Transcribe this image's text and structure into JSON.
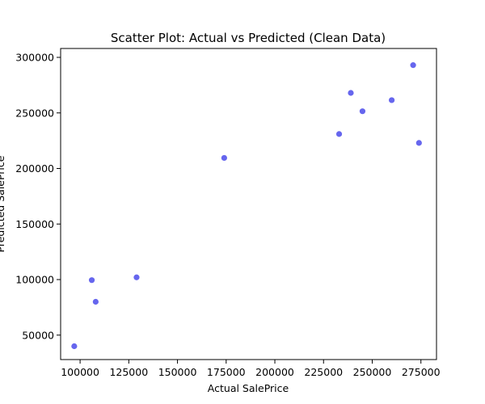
{
  "chart_data": {
    "type": "scatter",
    "title": "Scatter Plot: Actual vs Predicted (Clean Data)",
    "xlabel": "Actual SalePrice",
    "ylabel": "Predicted SalePrice",
    "xlim": [
      90000,
      283000
    ],
    "ylim": [
      28000,
      308000
    ],
    "xticks": [
      100000,
      125000,
      150000,
      175000,
      200000,
      225000,
      250000,
      275000
    ],
    "yticks": [
      50000,
      100000,
      150000,
      200000,
      250000,
      300000
    ],
    "grid": false,
    "marker_color": "#6666ee",
    "points": [
      {
        "x": 97000,
        "y": 40000
      },
      {
        "x": 106000,
        "y": 99500
      },
      {
        "x": 108000,
        "y": 80000
      },
      {
        "x": 129000,
        "y": 102000
      },
      {
        "x": 174000,
        "y": 209500
      },
      {
        "x": 233000,
        "y": 231000
      },
      {
        "x": 239000,
        "y": 268000
      },
      {
        "x": 245000,
        "y": 251500
      },
      {
        "x": 260000,
        "y": 261500
      },
      {
        "x": 271000,
        "y": 293000
      },
      {
        "x": 274000,
        "y": 223000
      }
    ]
  }
}
